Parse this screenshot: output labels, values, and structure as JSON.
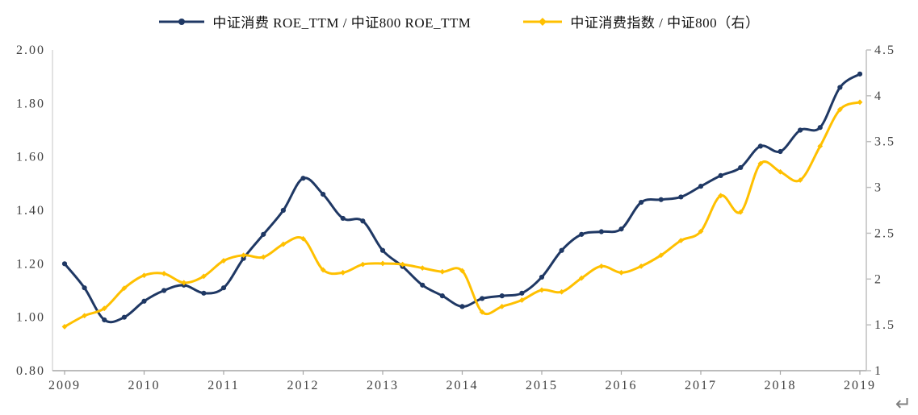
{
  "page": {
    "background": "#ffffff",
    "return_mark": "↵"
  },
  "chart_data": {
    "type": "line",
    "title": "",
    "grid": false,
    "legend_position": "top",
    "x_start": 2009,
    "x_step_years": 0.25,
    "x_tick_labels": [
      "2009",
      "2010",
      "2011",
      "2012",
      "2013",
      "2014",
      "2015",
      "2016",
      "2017",
      "2018",
      "2019"
    ],
    "left_axis": {
      "min": 0.8,
      "max": 2.0,
      "tick_labels": [
        "0.80",
        "1.00",
        "1.20",
        "1.40",
        "1.60",
        "1.80",
        "2.00"
      ]
    },
    "right_axis": {
      "min": 1.0,
      "max": 4.5,
      "tick_labels": [
        "1",
        "1.5",
        "2",
        "2.5",
        "3",
        "3.5",
        "4",
        "4.5"
      ]
    },
    "axis_colors": {
      "left_line": "#d9d9d9",
      "bottom_line": "#a6a6a6",
      "right_line": "#bfbfbf",
      "text": "#3f3f3f"
    },
    "series": [
      {
        "name": "中证消费 ROE_TTM / 中证800 ROE_TTM",
        "axis": "left",
        "color": "#1F3864",
        "marker": "circle",
        "values": [
          1.2,
          1.11,
          0.99,
          1.0,
          1.06,
          1.1,
          1.12,
          1.09,
          1.11,
          1.22,
          1.31,
          1.4,
          1.52,
          1.46,
          1.37,
          1.36,
          1.25,
          1.19,
          1.12,
          1.08,
          1.04,
          1.07,
          1.08,
          1.09,
          1.15,
          1.25,
          1.31,
          1.32,
          1.33,
          1.43,
          1.44,
          1.45,
          1.49,
          1.53,
          1.56,
          1.64,
          1.62,
          1.7,
          1.71,
          1.86,
          1.91
        ]
      },
      {
        "name": "中证消费指数 / 中证800（右）",
        "axis": "right",
        "color": "#FFC000",
        "marker": "diamond",
        "values": [
          1.48,
          1.6,
          1.68,
          1.9,
          2.04,
          2.06,
          1.96,
          2.03,
          2.2,
          2.26,
          2.24,
          2.38,
          2.44,
          2.1,
          2.07,
          2.16,
          2.17,
          2.16,
          2.12,
          2.08,
          2.09,
          1.64,
          1.7,
          1.77,
          1.88,
          1.86,
          2.01,
          2.14,
          2.07,
          2.14,
          2.26,
          2.42,
          2.52,
          2.91,
          2.73,
          3.26,
          3.17,
          3.08,
          3.45,
          3.85,
          3.93
        ]
      }
    ]
  }
}
